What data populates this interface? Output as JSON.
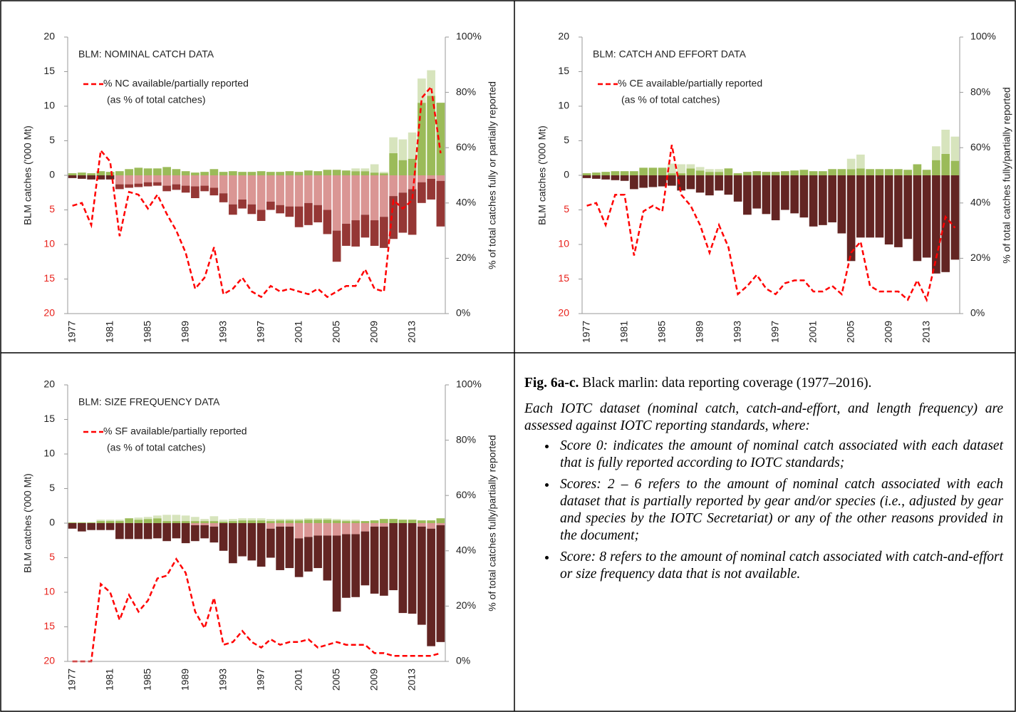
{
  "chart_data": [
    {
      "type": "bar",
      "title": "BLM: NOMINAL CATCH DATA",
      "y_label": "BLM catches ('000 Mt)",
      "y2_label": "% of total catches fully or partially reported",
      "legend_note": "(as % of total catches)",
      "categories": [
        "1977",
        null,
        null,
        null,
        "1981",
        null,
        null,
        null,
        "1985",
        null,
        null,
        null,
        "1989",
        null,
        null,
        null,
        "1993",
        null,
        null,
        null,
        "1997",
        null,
        null,
        null,
        "2001",
        null,
        null,
        null,
        "2005",
        null,
        null,
        null,
        "2009",
        null,
        null,
        null,
        "2013",
        null,
        null,
        null
      ],
      "ylim": [
        -20,
        20
      ],
      "yticks": [
        20,
        15,
        10,
        5,
        0,
        {
          "value": -5,
          "label": "5"
        },
        {
          "value": -10,
          "label": "10"
        },
        {
          "value": -15,
          "label": "15"
        },
        {
          "value": -20,
          "label": "20"
        }
      ],
      "y2lim": [
        0,
        100
      ],
      "y2ticks": [
        {
          "value": 0,
          "label": "0%"
        },
        {
          "value": 20,
          "label": "20%"
        },
        {
          "value": 40,
          "label": "40%"
        },
        {
          "value": 60,
          "label": "60%"
        },
        {
          "value": 80,
          "label": "80%"
        },
        {
          "value": 100,
          "label": "100%"
        }
      ],
      "negative_tick_color": "#e8201a",
      "series": [
        {
          "color": "#9bbb59",
          "values": [
            0.3,
            0.4,
            0.3,
            0.6,
            0.5,
            0.6,
            0.9,
            1.1,
            1.0,
            1.0,
            1.2,
            0.9,
            0.6,
            0.4,
            0.5,
            0.9,
            0.5,
            0.6,
            0.5,
            0.5,
            0.6,
            0.5,
            0.5,
            0.6,
            0.5,
            0.7,
            0.6,
            0.8,
            0.8,
            0.7,
            0.6,
            0.6,
            0.4,
            0.3,
            3.2,
            2.2,
            2.4,
            10.5,
            11.5,
            10.5
          ]
        },
        {
          "color": "#d7e4bd",
          "values": [
            0,
            0,
            0,
            0,
            0,
            0,
            0,
            0,
            0,
            0,
            0,
            0,
            0,
            0,
            0,
            0,
            0,
            0,
            0,
            0,
            0,
            0,
            0,
            0,
            0,
            0,
            0,
            0,
            0,
            0,
            0.4,
            0.4,
            1.2,
            0.2,
            2.3,
            3.0,
            3.8,
            3.5,
            3.7,
            0
          ]
        },
        {
          "color": "#632523",
          "values": [
            -0.4,
            -0.5,
            -0.6,
            -0.6,
            -0.6,
            0,
            0,
            0,
            0,
            0,
            0,
            0,
            0,
            0,
            0,
            0,
            0,
            0,
            0,
            0,
            0,
            0,
            0,
            0,
            0,
            0,
            0,
            0,
            0,
            0,
            0,
            0,
            0,
            0,
            0,
            0,
            0,
            0,
            0,
            0
          ]
        },
        {
          "color": "#da9694",
          "values": [
            0,
            0,
            0,
            0,
            0,
            -1.3,
            -1.3,
            -1.2,
            -1.0,
            -1.0,
            -1.5,
            -1.3,
            -1.5,
            -1.6,
            -1.5,
            -1.8,
            -2.6,
            -4.2,
            -3.5,
            -4.2,
            -5.0,
            -3.8,
            -4.3,
            -4.5,
            -4.5,
            -4.0,
            -4.3,
            -5.0,
            -8.0,
            -7.0,
            -6.5,
            -5.7,
            -6.5,
            -6.0,
            -3.0,
            -2.5,
            -2.0,
            -1.0,
            -0.5,
            -0.8
          ]
        },
        {
          "color": "#953735",
          "values": [
            0,
            0,
            0,
            0,
            0,
            -0.7,
            -0.5,
            -0.5,
            -0.6,
            -0.5,
            -0.8,
            -0.8,
            -1.0,
            -1.7,
            -0.8,
            -1.1,
            -1.3,
            -1.5,
            -1.3,
            -1.4,
            -1.6,
            -1.2,
            -1.2,
            -1.5,
            -3.0,
            -3.2,
            -2.5,
            -3.5,
            -4.5,
            -3.2,
            -3.8,
            -3.3,
            -3.7,
            -4.5,
            -6.2,
            -5.8,
            -6.6,
            -3.0,
            -3.0,
            -6.6
          ]
        },
        {
          "type": "line",
          "name": "% NC available/partially reported",
          "color": "#ff0000",
          "axis": "y2",
          "values": [
            39,
            40,
            32,
            59,
            55,
            28,
            44,
            43,
            38,
            43,
            36,
            30,
            22,
            9,
            13,
            24,
            7,
            9,
            13,
            8,
            6,
            10,
            8,
            9,
            8,
            7,
            9,
            6,
            8,
            10,
            10,
            16,
            9,
            8,
            41,
            38,
            41,
            78,
            82,
            58
          ]
        }
      ]
    },
    {
      "type": "bar",
      "title": "BLM: CATCH AND EFFORT DATA",
      "y_label": "BLM catches ('000 Mt)",
      "y2_label": "% of total catches fully/partially reported",
      "legend_note": "(as % of total catches)",
      "categories": [
        "1977",
        null,
        null,
        null,
        "1981",
        null,
        null,
        null,
        "1985",
        null,
        null,
        null,
        "1989",
        null,
        null,
        null,
        "1993",
        null,
        null,
        null,
        "1997",
        null,
        null,
        null,
        "2001",
        null,
        null,
        null,
        "2005",
        null,
        null,
        null,
        "2009",
        null,
        null,
        null,
        "2013",
        null,
        null,
        null
      ],
      "ylim": [
        -20,
        20
      ],
      "yticks": [
        20,
        15,
        10,
        5,
        0,
        {
          "value": -5,
          "label": "5"
        },
        {
          "value": -10,
          "label": "10"
        },
        {
          "value": -15,
          "label": "15"
        },
        {
          "value": -20,
          "label": "20"
        }
      ],
      "y2lim": [
        0,
        100
      ],
      "y2ticks": [
        {
          "value": 0,
          "label": "0%"
        },
        {
          "value": 20,
          "label": "20%"
        },
        {
          "value": 40,
          "label": "40%"
        },
        {
          "value": 60,
          "label": "60%"
        },
        {
          "value": 80,
          "label": "80%"
        },
        {
          "value": 100,
          "label": "100%"
        }
      ],
      "negative_tick_color": "#e8201a",
      "series": [
        {
          "color": "#9bbb59",
          "values": [
            0.3,
            0.4,
            0.5,
            0.6,
            0.6,
            0.6,
            1.1,
            1.1,
            1.1,
            0.3,
            0.3,
            1.0,
            0.7,
            0.5,
            0.5,
            1.0,
            0.3,
            0.5,
            0.6,
            0.5,
            0.5,
            0.6,
            0.7,
            0.8,
            0.6,
            0.6,
            0.9,
            0.9,
            0.9,
            1.0,
            0.9,
            0.9,
            0.9,
            0.9,
            0.8,
            1.6,
            0.8,
            2.2,
            3.1,
            2.1
          ]
        },
        {
          "color": "#d7e4bd",
          "values": [
            0,
            0,
            0,
            0,
            0,
            0,
            0,
            0,
            0,
            1.4,
            1.3,
            0.6,
            0.5,
            0.4,
            0.4,
            0,
            0,
            0,
            0,
            0,
            0,
            0,
            0,
            0,
            0,
            0,
            0,
            0,
            1.5,
            2.0,
            0,
            0,
            0,
            0,
            0,
            0,
            0,
            2.0,
            3.5,
            3.5
          ]
        },
        {
          "color": "#632523",
          "values": [
            -0.4,
            -0.5,
            -0.6,
            -0.7,
            -0.8,
            -2.0,
            -1.8,
            -1.7,
            -1.6,
            -1.5,
            -2.2,
            -2.0,
            -2.5,
            -2.9,
            -2.2,
            -2.8,
            -3.8,
            -5.7,
            -4.8,
            -5.6,
            -6.5,
            -5.0,
            -5.5,
            -6.1,
            -7.4,
            -7.2,
            -6.8,
            -8.4,
            -12.4,
            -9.0,
            -9.0,
            -9.0,
            -10.0,
            -10.4,
            -9.2,
            -12.4,
            -11.9,
            -14.2,
            -14.0,
            -12.2
          ]
        },
        {
          "type": "line",
          "name": "% CE available/partially reported",
          "color": "#ff0000",
          "axis": "y2",
          "values": [
            39,
            40,
            32,
            43,
            43,
            21,
            37,
            39,
            37,
            61,
            43,
            39,
            32,
            22,
            32,
            24,
            7,
            10,
            14,
            9,
            7,
            11,
            12,
            12,
            8,
            8,
            10,
            7,
            22,
            26,
            10,
            8,
            8,
            8,
            5,
            12,
            5,
            20,
            35,
            31
          ]
        }
      ]
    },
    {
      "type": "bar",
      "title": "BLM: SIZE FREQUENCY DATA",
      "y_label": "BLM catches ('000 Mt)",
      "y2_label": "% of total catches fully/partially reported",
      "legend_note": "(as % of total catches)",
      "categories": [
        "1977",
        null,
        null,
        null,
        "1981",
        null,
        null,
        null,
        "1985",
        null,
        null,
        null,
        "1989",
        null,
        null,
        null,
        "1993",
        null,
        null,
        null,
        "1997",
        null,
        null,
        null,
        "2001",
        null,
        null,
        null,
        "2005",
        null,
        null,
        null,
        "2009",
        null,
        null,
        null,
        "2013",
        null,
        null,
        null
      ],
      "ylim": [
        -20,
        20
      ],
      "yticks": [
        20,
        15,
        10,
        5,
        0,
        {
          "value": -5,
          "label": "5"
        },
        {
          "value": -10,
          "label": "10"
        },
        {
          "value": -15,
          "label": "15"
        },
        {
          "value": -20,
          "label": "20"
        }
      ],
      "y2lim": [
        0,
        100
      ],
      "y2ticks": [
        {
          "value": 0,
          "label": "0%"
        },
        {
          "value": 20,
          "label": "20%"
        },
        {
          "value": 40,
          "label": "40%"
        },
        {
          "value": 60,
          "label": "60%"
        },
        {
          "value": 80,
          "label": "80%"
        },
        {
          "value": 100,
          "label": "100%"
        }
      ],
      "negative_tick_color": "#e8201a",
      "series": [
        {
          "color": "#9bbb59",
          "values": [
            0.1,
            0.1,
            0.1,
            0.3,
            0.3,
            0.3,
            0.7,
            0.5,
            0.6,
            0.7,
            0.3,
            0.3,
            0.3,
            0.3,
            0.3,
            0.3,
            0.2,
            0.3,
            0.4,
            0.4,
            0.4,
            0.3,
            0.4,
            0.4,
            0.4,
            0.5,
            0.5,
            0.5,
            0.4,
            0.3,
            0.3,
            0.3,
            0.4,
            0.6,
            0.6,
            0.5,
            0.5,
            0.4,
            0.4,
            0.7
          ]
        },
        {
          "color": "#d7e4bd",
          "values": [
            0,
            0,
            0,
            0.2,
            0.2,
            0.2,
            0,
            0.3,
            0.3,
            0.4,
            0.9,
            0.9,
            0.8,
            0.6,
            0.3,
            0.7,
            0.3,
            0.3,
            0.3,
            0.3,
            0.3,
            0.3,
            0.2,
            0.2,
            0.2,
            0.2,
            0.2,
            0.2,
            0.2,
            0.2,
            0.2,
            0,
            0,
            0,
            0,
            0,
            0,
            0,
            0,
            0
          ]
        },
        {
          "color": "#da9694",
          "values": [
            0,
            0,
            0,
            0,
            0,
            0,
            0,
            0,
            0,
            0,
            0,
            0,
            0,
            -0.3,
            -0.3,
            -0.5,
            0,
            0,
            0,
            0,
            0,
            -0.8,
            -0.5,
            -0.5,
            -2.2,
            -2.0,
            -1.8,
            -1.8,
            -1.8,
            -1.6,
            -1.6,
            -1.2,
            -0.5,
            -0.5,
            0,
            0,
            0,
            -0.5,
            -0.8,
            -0.3
          ]
        },
        {
          "color": "#632523",
          "values": [
            -0.8,
            -1.2,
            -1.0,
            -1.0,
            -1.0,
            -2.3,
            -2.3,
            -2.3,
            -2.3,
            -2.2,
            -2.6,
            -2.2,
            -2.9,
            -2.3,
            -1.9,
            -2.3,
            -4.0,
            -5.8,
            -4.8,
            -5.4,
            -6.3,
            -4.2,
            -6.3,
            -6.0,
            -5.6,
            -5.0,
            -4.7,
            -6.5,
            -11.0,
            -9.2,
            -9.1,
            -7.8,
            -9.7,
            -10.0,
            -9.7,
            -13.0,
            -13.1,
            -14.2,
            -17.0,
            -16.9
          ]
        },
        {
          "type": "line",
          "name": "% SF available/partially reported",
          "color": "#ff0000",
          "axis": "y2",
          "values": [
            0,
            0,
            0,
            28,
            25,
            15,
            24,
            18,
            22,
            30,
            31,
            37,
            32,
            18,
            12,
            23,
            6,
            7,
            11,
            7,
            5,
            8,
            6,
            7,
            7,
            8,
            5,
            6,
            7,
            6,
            6,
            6,
            3,
            3,
            2,
            2,
            2,
            2,
            2,
            3
          ]
        }
      ]
    }
  ],
  "caption": {
    "label": "Fig. 6a-c.",
    "text": "Black marlin: data reporting coverage (1977–2016)."
  },
  "description": "Each IOTC dataset (nominal catch, catch-and-effort, and length frequency) are assessed against IOTC reporting standards, where:",
  "bullets": [
    "Score 0: indicates the amount of nominal catch associated with each dataset that is fully reported according to IOTC standards;",
    "Scores: 2 – 6 refers to the amount of nominal catch associated with each dataset that is partially reported by gear and/or species (i.e., adjusted by gear and species by the IOTC Secretariat) or any of the other reasons provided in the document;",
    "Score: 8 refers to the amount of nominal catch associated with catch-and-effort or size frequency data that is not available."
  ]
}
